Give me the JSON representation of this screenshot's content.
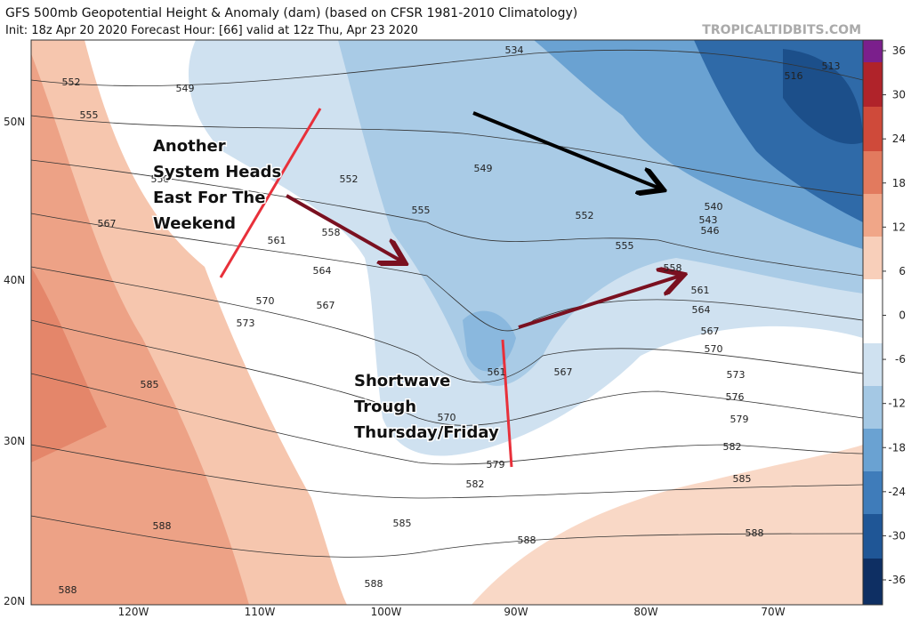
{
  "header": {
    "title": "GFS 500mb Geopotential Height & Anomaly (dam) (based on CFSR 1981-2010 Climatology)",
    "subtitle": "Init: 18z Apr 20 2020   Forecast Hour: [66]   valid at 12z Thu, Apr 23 2020",
    "source": "TROPICALTIDBITS.COM"
  },
  "annotations": [
    {
      "lines": [
        "Another",
        "System Heads",
        "East For The",
        "Weekend"
      ]
    },
    {
      "lines": [
        "Shortwave",
        "Trough",
        "Thursday/Friday"
      ]
    }
  ],
  "latitude_labels": [
    "50N",
    "40N",
    "30N",
    "20N"
  ],
  "longitude_labels": [
    "120W",
    "110W",
    "100W",
    "90W",
    "80W",
    "70W"
  ],
  "contour_labels": [
    "552",
    "549",
    "555",
    "534",
    "516",
    "513",
    "558",
    "552",
    "549",
    "555",
    "552",
    "540",
    "543",
    "546",
    "567",
    "561",
    "558",
    "555",
    "564",
    "558",
    "561",
    "564",
    "570",
    "567",
    "573",
    "567",
    "570",
    "561",
    "567",
    "573",
    "585",
    "576",
    "579",
    "570",
    "582",
    "579",
    "582",
    "585",
    "585",
    "588",
    "588",
    "588",
    "588",
    "588"
  ],
  "colorbar": {
    "ticks": [
      "36",
      "30",
      "24",
      "18",
      "12",
      "6",
      "0",
      "-6",
      "-12",
      "-18",
      "-24",
      "-30",
      "-36"
    ]
  }
}
